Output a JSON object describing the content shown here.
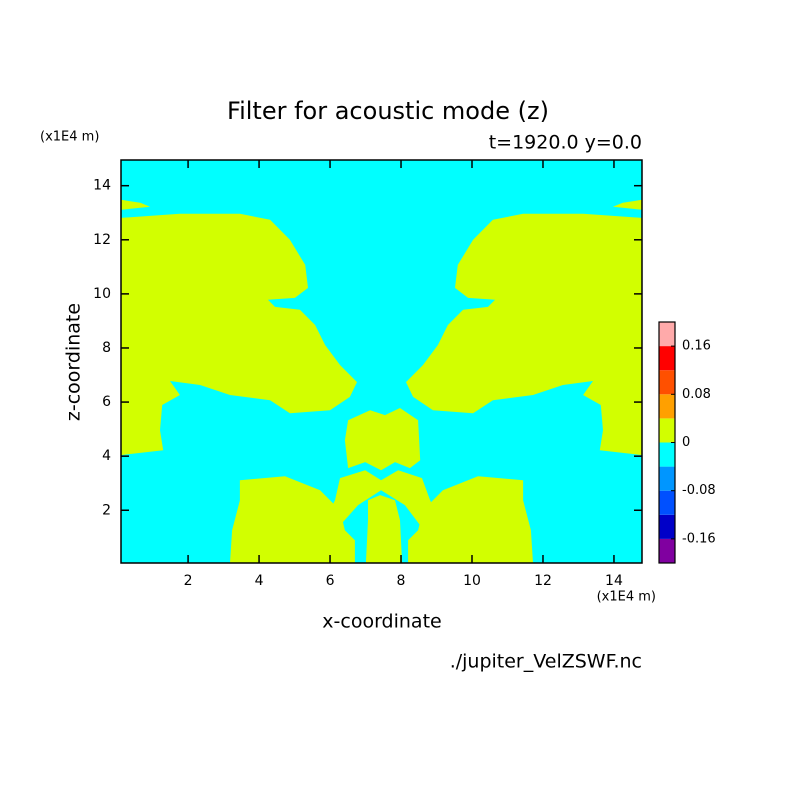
{
  "chart_data": {
    "type": "contour",
    "title": "Filter for acoustic mode (z)",
    "subtitle": "t=1920.0 y=0.0",
    "x_label": "x-coordinate",
    "y_label": "z-coordinate",
    "x_unit": "(x1E4 m)",
    "y_unit": "(x1E4 m)",
    "source": "./jupiter_VelZSWF.nc",
    "xlim": [
      0.11,
      14.79
    ],
    "ylim": [
      0.05,
      14.95
    ],
    "xticks": [
      2,
      4,
      6,
      8,
      10,
      12,
      14
    ],
    "yticks": [
      2,
      4,
      6,
      8,
      10,
      12,
      14
    ],
    "background_color": "#00ffff",
    "levels": [
      -0.2,
      -0.16,
      -0.12,
      -0.08,
      -0.04,
      0,
      0.04,
      0.08,
      0.12,
      0.16,
      0.2
    ],
    "level_colors": [
      "#8000a0",
      "#0000c8",
      "#0050ff",
      "#0096ff",
      "#00ffff",
      "#d2ff00",
      "#ffa000",
      "#ff5000",
      "#ff0000",
      "#ffaaaa"
    ],
    "colorbar_ticks": [
      -0.16,
      -0.08,
      0,
      0.08,
      0.16
    ],
    "regions": [
      {
        "color": "#d2ff00",
        "x": [
          0.11,
          1.77,
          3.46,
          4.31,
          4.87,
          5.3,
          5.38,
          5.01,
          4.25,
          4.45,
          5.15,
          5.58,
          5.86,
          6.28,
          6.76,
          6.56,
          6.0,
          4.87,
          4.31,
          3.18,
          2.34,
          1.49,
          1.77,
          1.27,
          1.21,
          1.3,
          0.11
        ],
        "y": [
          12.81,
          12.96,
          12.96,
          12.74,
          12.0,
          11.07,
          10.22,
          9.85,
          9.78,
          9.52,
          9.41,
          8.85,
          8.11,
          7.37,
          6.74,
          6.19,
          5.7,
          5.59,
          6.07,
          6.26,
          6.63,
          6.78,
          6.26,
          5.89,
          4.96,
          4.22,
          4.04
        ]
      },
      {
        "color": "#d2ff00",
        "x": [
          14.79,
          13.13,
          11.44,
          10.59,
          10.03,
          9.6,
          9.52,
          9.89,
          10.65,
          10.45,
          9.75,
          9.32,
          9.04,
          8.62,
          8.14,
          8.34,
          8.9,
          10.03,
          10.59,
          11.72,
          12.56,
          13.41,
          13.13,
          13.63,
          13.69,
          13.6,
          14.79
        ],
        "y": [
          12.81,
          12.96,
          12.96,
          12.74,
          12.0,
          11.07,
          10.22,
          9.85,
          9.78,
          9.52,
          9.41,
          8.85,
          8.11,
          7.37,
          6.74,
          6.19,
          5.7,
          5.59,
          6.07,
          6.26,
          6.63,
          6.78,
          6.26,
          5.89,
          4.96,
          4.22,
          4.04
        ]
      },
      {
        "color": "#d2ff00",
        "x": [
          6.51,
          7.13,
          7.55,
          7.97,
          8.48,
          8.54,
          8.25,
          7.83,
          7.44,
          6.99,
          6.51,
          6.42
        ],
        "y": [
          5.33,
          5.7,
          5.52,
          5.78,
          5.33,
          3.85,
          3.56,
          3.78,
          3.48,
          3.78,
          3.56,
          4.59
        ]
      },
      {
        "color": "#d2ff00",
        "x": [
          6.28,
          6.99,
          7.44,
          7.92,
          8.59,
          8.82,
          9.1,
          8.54,
          8.11,
          7.44,
          6.79,
          6.28,
          5.86,
          6.14
        ],
        "y": [
          3.19,
          3.48,
          3.11,
          3.48,
          3.19,
          2.37,
          1.63,
          1.44,
          2.19,
          2.74,
          2.19,
          1.44,
          1.63,
          2.37
        ]
      },
      {
        "color": "#d2ff00",
        "x": [
          3.46,
          4.73,
          5.72,
          6.28,
          6.42,
          6.7,
          6.7,
          3.18,
          3.24,
          3.46
        ],
        "y": [
          3.11,
          3.26,
          2.74,
          2.0,
          1.26,
          0.89,
          0.05,
          0.05,
          1.26,
          2.37
        ]
      },
      {
        "color": "#d2ff00",
        "x": [
          11.44,
          10.17,
          9.18,
          8.62,
          8.48,
          8.2,
          8.2,
          11.72,
          11.66,
          11.44
        ],
        "y": [
          3.11,
          3.26,
          2.74,
          2.0,
          1.26,
          0.89,
          0.05,
          0.05,
          1.26,
          2.37
        ]
      },
      {
        "color": "#d2ff00",
        "x": [
          7.07,
          7.41,
          7.83,
          7.97,
          8.03,
          7.01,
          7.07
        ],
        "y": [
          2.37,
          2.56,
          2.37,
          1.63,
          0.05,
          0.05,
          1.63
        ]
      },
      {
        "color": "#d2ff00",
        "x": [
          0.11,
          0.65,
          0.93,
          0.11
        ],
        "y": [
          13.48,
          13.37,
          13.22,
          13.11
        ]
      },
      {
        "color": "#d2ff00",
        "x": [
          14.79,
          14.25,
          13.97,
          14.79
        ],
        "y": [
          13.48,
          13.37,
          13.22,
          13.11
        ]
      }
    ]
  }
}
